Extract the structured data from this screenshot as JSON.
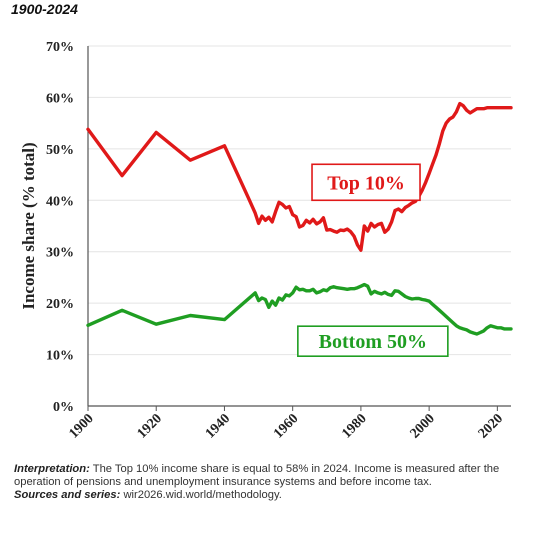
{
  "title": "1900-2024",
  "notes": {
    "interpretation_label": "Interpretation:",
    "interpretation_text": "The Top 10% income share is equal to 58% in 2024. Income is measured after the operation of pensions and unemployment insurance systems and before income tax.",
    "sources_label": "Sources and series:",
    "sources_text": "wir2026.wid.world/methodology."
  },
  "chart_data": {
    "type": "line",
    "title": "1900-2024",
    "xlabel": "",
    "ylabel": "Income share (% total)",
    "xlim": [
      1900,
      2024
    ],
    "ylim": [
      0,
      70
    ],
    "x_ticks": [
      1900,
      1920,
      1940,
      1960,
      1980,
      2000,
      2020
    ],
    "y_ticks": [
      0,
      10,
      20,
      30,
      40,
      50,
      60,
      70
    ],
    "y_tick_labels": [
      "0%",
      "10%",
      "20%",
      "30%",
      "40%",
      "50%",
      "60%",
      "70%"
    ],
    "grid": "horizontal",
    "legend": "inline labels",
    "series": [
      {
        "name": "Top 10%",
        "color": "#e01919",
        "x": [
          1900,
          1910,
          1920,
          1930,
          1940,
          1947,
          1949,
          1950,
          1951,
          1952,
          1953,
          1954,
          1955,
          1956,
          1957,
          1958,
          1959,
          1960,
          1961,
          1962,
          1963,
          1964,
          1965,
          1966,
          1967,
          1968,
          1969,
          1970,
          1971,
          1972,
          1973,
          1974,
          1975,
          1976,
          1977,
          1978,
          1979,
          1980,
          1981,
          1982,
          1983,
          1984,
          1985,
          1986,
          1987,
          1988,
          1989,
          1990,
          1991,
          1992,
          1993,
          1994,
          1995,
          1996,
          1997,
          1998,
          1999,
          2000,
          2001,
          2002,
          2003,
          2004,
          2005,
          2006,
          2007,
          2008,
          2009,
          2010,
          2011,
          2012,
          2013,
          2014,
          2015,
          2016,
          2017,
          2018,
          2019,
          2020,
          2021,
          2022,
          2023,
          2024
        ],
        "values": [
          53.8,
          44.8,
          53.2,
          47.8,
          50.6,
          40.5,
          37.5,
          35.5,
          36.9,
          36.1,
          36.7,
          35.8,
          37.8,
          39.6,
          39.2,
          38.5,
          38.8,
          37.2,
          36.8,
          34.8,
          35.1,
          36.1,
          35.6,
          36.3,
          35.4,
          35.8,
          36.6,
          34.2,
          34.3,
          34.0,
          33.8,
          34.2,
          34.1,
          34.4,
          33.9,
          33.0,
          31.3,
          30.3,
          35.0,
          34.0,
          35.5,
          34.8,
          35.3,
          35.5,
          33.8,
          34.4,
          35.8,
          38.0,
          38.3,
          37.8,
          38.6,
          39.0,
          39.5,
          39.8,
          40.8,
          42.0,
          43.5,
          45.2,
          47.0,
          48.8,
          51.0,
          53.5,
          55.0,
          55.8,
          56.2,
          57.2,
          58.8,
          58.4,
          57.5,
          57.0,
          57.4,
          57.8,
          57.8,
          57.8,
          58.0,
          58.0,
          58.0,
          58.0,
          58.0,
          58.0,
          58.0,
          58.0
        ]
      },
      {
        "name": "Bottom 50%",
        "color": "#1f9e22",
        "x": [
          1900,
          1910,
          1920,
          1930,
          1940,
          1949,
          1950,
          1951,
          1952,
          1953,
          1954,
          1955,
          1956,
          1957,
          1958,
          1959,
          1960,
          1961,
          1962,
          1963,
          1964,
          1965,
          1966,
          1967,
          1968,
          1969,
          1970,
          1971,
          1972,
          1973,
          1974,
          1975,
          1976,
          1977,
          1978,
          1979,
          1980,
          1981,
          1982,
          1983,
          1984,
          1985,
          1986,
          1987,
          1988,
          1989,
          1990,
          1991,
          1992,
          1993,
          1994,
          1995,
          1996,
          1997,
          1998,
          1999,
          2000,
          2001,
          2002,
          2003,
          2004,
          2005,
          2006,
          2007,
          2008,
          2009,
          2010,
          2011,
          2012,
          2013,
          2014,
          2015,
          2016,
          2017,
          2018,
          2019,
          2020,
          2021,
          2022,
          2023,
          2024
        ],
        "values": [
          15.7,
          18.6,
          15.9,
          17.6,
          16.8,
          22.0,
          20.5,
          21.0,
          20.7,
          19.2,
          20.4,
          19.6,
          21.0,
          20.6,
          21.6,
          21.4,
          22.0,
          23.1,
          22.6,
          22.7,
          22.4,
          22.4,
          22.7,
          22.0,
          22.2,
          22.6,
          22.4,
          23.0,
          23.2,
          23.0,
          22.9,
          22.8,
          22.7,
          22.8,
          22.8,
          23.0,
          23.3,
          23.6,
          23.3,
          21.8,
          22.3,
          22.0,
          21.8,
          22.1,
          21.7,
          21.5,
          22.4,
          22.3,
          21.8,
          21.3,
          21.0,
          20.8,
          20.9,
          20.9,
          20.7,
          20.6,
          20.4,
          19.8,
          19.2,
          18.6,
          18.0,
          17.4,
          16.8,
          16.2,
          15.6,
          15.2,
          15.0,
          14.8,
          14.4,
          14.2,
          14.0,
          14.3,
          14.6,
          15.2,
          15.6,
          15.4,
          15.2,
          15.2,
          15.0,
          15.0,
          15.0
        ]
      }
    ]
  },
  "colors": {
    "top10": "#e01919",
    "bottom50": "#1f9e22",
    "grid": "#e4e4e4",
    "axis": "#555555"
  }
}
